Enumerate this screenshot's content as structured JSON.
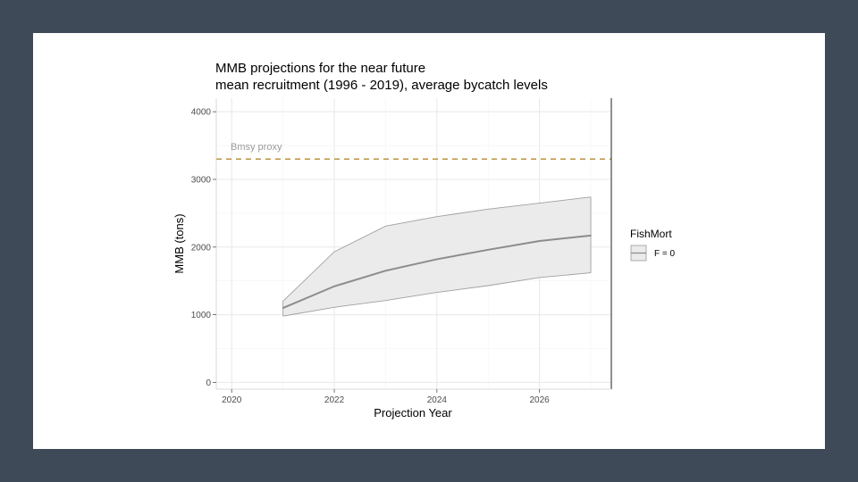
{
  "chart_data": {
    "type": "line",
    "title": "MMB projections for the near future",
    "subtitle": "mean recruitment (1996 - 2019), average bycatch levels",
    "xlabel": "Projection Year",
    "ylabel": "MMB (tons)",
    "xlim": [
      2019.7,
      2027.4
    ],
    "ylim": [
      -100,
      4200
    ],
    "x_ticks": [
      2020,
      2022,
      2024,
      2026
    ],
    "y_ticks": [
      0,
      1000,
      2000,
      3000,
      4000
    ],
    "x_tick_labels": [
      "2020",
      "2022",
      "2024",
      "2026"
    ],
    "y_tick_labels": [
      "0",
      "1000",
      "2000",
      "3000",
      "4000"
    ],
    "grid": true,
    "legend": {
      "title": "FishMort",
      "position": "right",
      "entries": [
        "F = 0"
      ]
    },
    "reference_line": {
      "label": "Bmsy proxy",
      "y": 3300,
      "color": "#b5892e",
      "style": "dashed"
    },
    "series": [
      {
        "name": "F = 0",
        "x": [
          2021,
          2022,
          2023,
          2024,
          2025,
          2026,
          2027
        ],
        "y": [
          1100,
          1420,
          1650,
          1820,
          1960,
          2090,
          2170
        ],
        "lower": [
          980,
          1110,
          1210,
          1330,
          1430,
          1550,
          1620
        ],
        "upper": [
          1200,
          1930,
          2310,
          2450,
          2560,
          2650,
          2740
        ],
        "color": "#8c8c8c",
        "band_color": "#ebebeb"
      }
    ]
  }
}
